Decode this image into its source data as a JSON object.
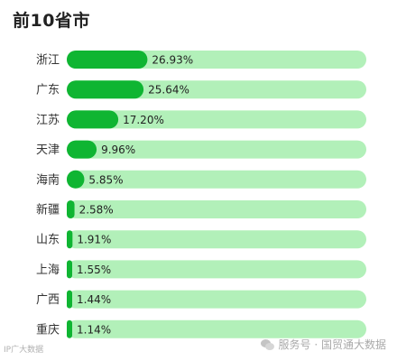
{
  "title": "前10省市",
  "footer": {
    "left_text": "IP广大数据",
    "right_text": "服务号 · 国贸通大数据"
  },
  "colors": {
    "bar_fill": "#0fb532",
    "bar_track": "#b2f0b9"
  },
  "chart_data": {
    "type": "bar",
    "orientation": "horizontal",
    "title": "前10省市",
    "categories": [
      "浙江",
      "广东",
      "江苏",
      "天津",
      "海南",
      "新疆",
      "山东",
      "上海",
      "广西",
      "重庆"
    ],
    "values": [
      26.93,
      25.64,
      17.2,
      9.96,
      5.85,
      2.58,
      1.91,
      1.55,
      1.44,
      1.14
    ],
    "value_labels": [
      "26.93%",
      "25.64%",
      "17.20%",
      "9.96%",
      "5.85%",
      "2.58%",
      "1.91%",
      "1.55%",
      "1.44%",
      "1.14%"
    ],
    "unit": "%",
    "xlim": [
      0,
      100
    ]
  }
}
